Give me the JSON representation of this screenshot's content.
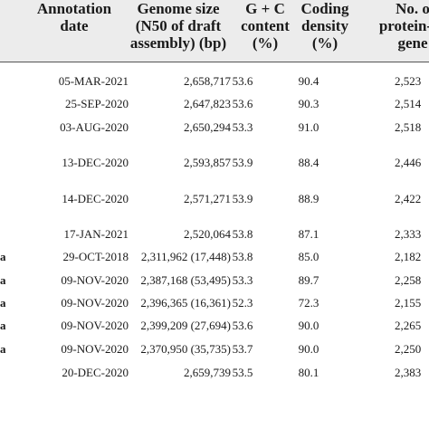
{
  "headers": {
    "annotation_date": "Annotation\ndate",
    "genome_size": "Genome size\n(N50 of draft\nassembly) (bp)",
    "gc_content": "G + C\ncontent\n(%)",
    "coding_density": "Coding\ndensity\n(%)",
    "protein_genes": "No. o\nprotein-co\ngene"
  },
  "rows": [
    {
      "mark": "",
      "date": "05-MAR-2021",
      "size": "2,658,717",
      "gc": "53.6",
      "coding": "90.4",
      "proteins": "2,523"
    },
    {
      "mark": "",
      "date": "25-SEP-2020",
      "size": "2,647,823",
      "gc": "53.6",
      "coding": "90.3",
      "proteins": "2,514"
    },
    {
      "mark": "",
      "date": "03-AUG-2020",
      "size": "2,650,294",
      "gc": "53.3",
      "coding": "91.0",
      "proteins": "2,518"
    },
    {
      "mark": "",
      "date": "13-DEC-2020",
      "size": "2,593,857",
      "gc": "53.9",
      "coding": "88.4",
      "proteins": "2,446"
    },
    {
      "mark": "",
      "date": "14-DEC-2020",
      "size": "2,571,271",
      "gc": "53.9",
      "coding": "88.9",
      "proteins": "2,422"
    },
    {
      "mark": "",
      "date": "17-JAN-2021",
      "size": "2,520,064",
      "gc": "53.8",
      "coding": "87.1",
      "proteins": "2,333"
    },
    {
      "mark": "a",
      "date": "29-OCT-2018",
      "size": "2,311,962 (17,448)",
      "gc": "53.8",
      "coding": "85.0",
      "proteins": "2,182"
    },
    {
      "mark": "a",
      "date": "09-NOV-2020",
      "size": "2,387,168 (53,495)",
      "gc": "53.3",
      "coding": "89.7",
      "proteins": "2,258"
    },
    {
      "mark": "a",
      "date": "09-NOV-2020",
      "size": "2,396,365 (16,361)",
      "gc": "52.3",
      "coding": "72.3",
      "proteins": "2,155"
    },
    {
      "mark": "a",
      "date": "09-NOV-2020",
      "size": "2,399,209 (27,694)",
      "gc": "53.6",
      "coding": "90.0",
      "proteins": "2,265"
    },
    {
      "mark": "a",
      "date": "09-NOV-2020",
      "size": "2,370,950 (35,735)",
      "gc": "53.7",
      "coding": "90.0",
      "proteins": "2,250"
    },
    {
      "mark": "",
      "date": "20-DEC-2020",
      "size": "2,659,739",
      "gc": "53.5",
      "coding": "80.1",
      "proteins": "2,383"
    }
  ]
}
